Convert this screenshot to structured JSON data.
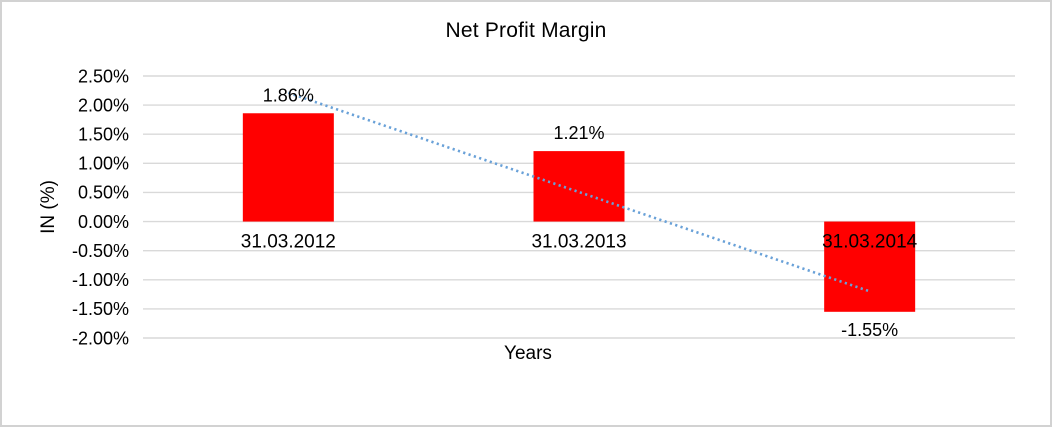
{
  "window": {
    "background_color": "#FFFFFF",
    "border_color": "#D2D2D2"
  },
  "chart_data": {
    "type": "bar",
    "title": "Net Profit Margin",
    "xlabel": "Years",
    "ylabel": "IN (%)",
    "categories": [
      "31.03.2012",
      "31.03.2013",
      "31.03.2014"
    ],
    "values": [
      1.86,
      1.21,
      -1.55
    ],
    "data_labels": [
      "1.86%",
      "1.21%",
      "-1.55%"
    ],
    "ylim": [
      -2.0,
      2.5
    ],
    "y_ticks": [
      {
        "value": 2.5,
        "label": "2.50%"
      },
      {
        "value": 2.0,
        "label": "2.00%"
      },
      {
        "value": 1.5,
        "label": "1.50%"
      },
      {
        "value": 1.0,
        "label": "1.00%"
      },
      {
        "value": 0.5,
        "label": "0.50%"
      },
      {
        "value": 0.0,
        "label": "0.00%"
      },
      {
        "value": -0.5,
        "label": "-0.50%"
      },
      {
        "value": -1.0,
        "label": "-1.00%"
      },
      {
        "value": -1.5,
        "label": "-1.50%"
      },
      {
        "value": -2.0,
        "label": "-2.00%"
      }
    ],
    "grid": true,
    "legend": "none",
    "bar_color": "#FF0000",
    "gridline_color": "#D9D9D9",
    "text_color": "#000000",
    "trendline": {
      "type": "linear",
      "style": "dotted",
      "color": "#69A1D8"
    }
  }
}
